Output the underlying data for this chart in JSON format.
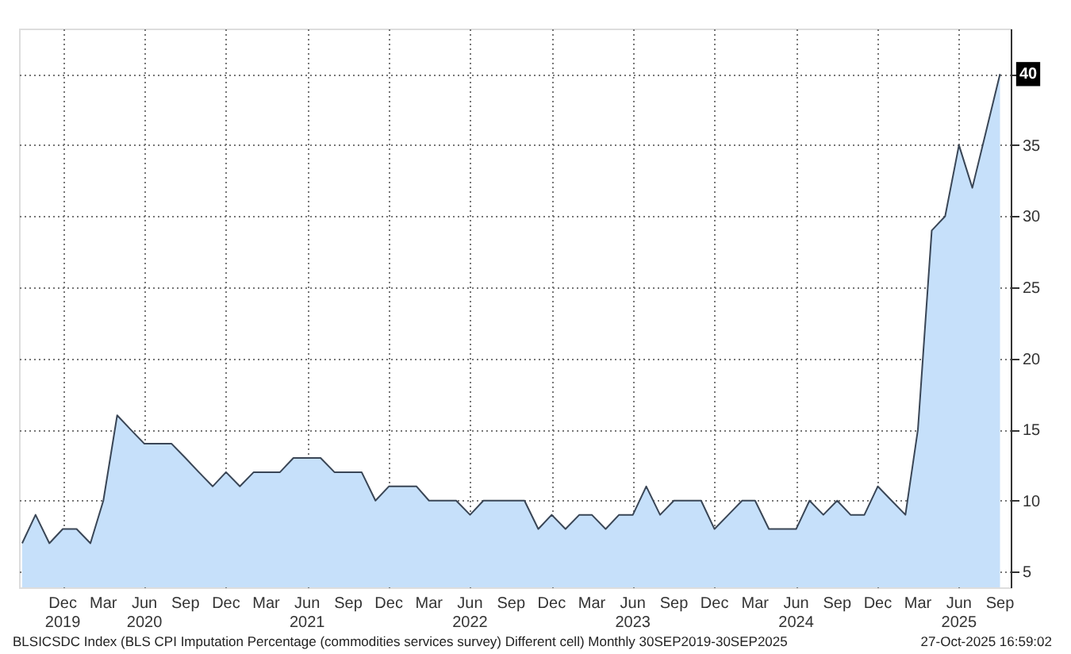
{
  "chart_data": {
    "type": "area",
    "x": [
      "2019-09",
      "2019-10",
      "2019-11",
      "2019-12",
      "2020-01",
      "2020-02",
      "2020-03",
      "2020-04",
      "2020-05",
      "2020-06",
      "2020-07",
      "2020-08",
      "2020-09",
      "2020-10",
      "2020-11",
      "2020-12",
      "2021-01",
      "2021-02",
      "2021-03",
      "2021-04",
      "2021-05",
      "2021-06",
      "2021-07",
      "2021-08",
      "2021-09",
      "2021-10",
      "2021-11",
      "2021-12",
      "2022-01",
      "2022-02",
      "2022-03",
      "2022-04",
      "2022-05",
      "2022-06",
      "2022-07",
      "2022-08",
      "2022-09",
      "2022-10",
      "2022-11",
      "2022-12",
      "2023-01",
      "2023-02",
      "2023-03",
      "2023-04",
      "2023-05",
      "2023-06",
      "2023-07",
      "2023-08",
      "2023-09",
      "2023-10",
      "2023-11",
      "2023-12",
      "2024-01",
      "2024-02",
      "2024-03",
      "2024-04",
      "2024-05",
      "2024-06",
      "2024-07",
      "2024-08",
      "2024-09",
      "2024-10",
      "2024-11",
      "2024-12",
      "2025-01",
      "2025-02",
      "2025-03",
      "2025-04",
      "2025-05",
      "2025-06",
      "2025-07",
      "2025-08",
      "2025-09"
    ],
    "series": [
      {
        "color": "#c6e0fa",
        "values": [
          7,
          9,
          7,
          8,
          8,
          7,
          10,
          16,
          15,
          14,
          14,
          14,
          13,
          12,
          11,
          12,
          11,
          12,
          12,
          12,
          13,
          13,
          13,
          12,
          12,
          12,
          10,
          11,
          11,
          11,
          10,
          10,
          10,
          9,
          10,
          10,
          10,
          10,
          8,
          9,
          8,
          9,
          9,
          8,
          9,
          9,
          11,
          9,
          10,
          10,
          10,
          8,
          9,
          10,
          10,
          8,
          8,
          8,
          10,
          9,
          10,
          9,
          9,
          11,
          10,
          9,
          15,
          29,
          30,
          35,
          32,
          36,
          40
        ],
        "value_labels": [
          null,
          null,
          null,
          null,
          null,
          null,
          null,
          null,
          null,
          null,
          null,
          null,
          null,
          null,
          null,
          null,
          null,
          null,
          null,
          null,
          null,
          null,
          null,
          null,
          null,
          null,
          null,
          null,
          null,
          null,
          null,
          null,
          null,
          null,
          null,
          null,
          null,
          null,
          null,
          null,
          null,
          null,
          null,
          null,
          null,
          null,
          null,
          null,
          null,
          null,
          null,
          null,
          null,
          null,
          null,
          null,
          null,
          null,
          null,
          null,
          null,
          null,
          null,
          null,
          null,
          null,
          null,
          null,
          null,
          null,
          null,
          null,
          "40"
        ]
      }
    ],
    "xlim": [
      "2019-08-25",
      "2025-09-25"
    ],
    "xticks": [
      {
        "value": "2019-12",
        "label": "Dec\n2019"
      },
      {
        "value": "2020-03",
        "label": "Mar"
      },
      {
        "value": "2020-06",
        "label": "Jun\n2020"
      },
      {
        "value": "2020-09",
        "label": "Sep"
      },
      {
        "value": "2020-12",
        "label": "Dec"
      },
      {
        "value": "2021-03",
        "label": "Mar"
      },
      {
        "value": "2021-06",
        "label": "Jun\n2021"
      },
      {
        "value": "2021-09",
        "label": "Sep"
      },
      {
        "value": "2021-12",
        "label": "Dec"
      },
      {
        "value": "2022-03",
        "label": "Mar"
      },
      {
        "value": "2022-06",
        "label": "Jun\n2022"
      },
      {
        "value": "2022-09",
        "label": "Sep"
      },
      {
        "value": "2022-12",
        "label": "Dec"
      },
      {
        "value": "2023-03",
        "label": "Mar"
      },
      {
        "value": "2023-06",
        "label": "Jun\n2023"
      },
      {
        "value": "2023-09",
        "label": "Sep"
      },
      {
        "value": "2023-12",
        "label": "Dec"
      },
      {
        "value": "2024-03",
        "label": "Mar"
      },
      {
        "value": "2024-06",
        "label": "Jun\n2024"
      },
      {
        "value": "2024-09",
        "label": "Sep"
      },
      {
        "value": "2024-12",
        "label": "Dec"
      },
      {
        "value": "2025-03",
        "label": "Mar"
      },
      {
        "value": "2025-06",
        "label": "Jun\n2025"
      },
      {
        "value": "2025-09",
        "label": "Sep"
      }
    ],
    "ylim": [
      3.9,
      43.2
    ],
    "yticks": [
      5,
      10,
      15,
      20,
      25,
      30,
      35,
      40
    ],
    "grid": true,
    "line_style": "solid",
    "annotations": [
      "BLSICSDC Index (BLS CPI Imputation Percentage (commodities services survey) Different cell) Monthly 30SEP2019-30SEP2025",
      "27-Oct-2025 16:59:02"
    ]
  }
}
